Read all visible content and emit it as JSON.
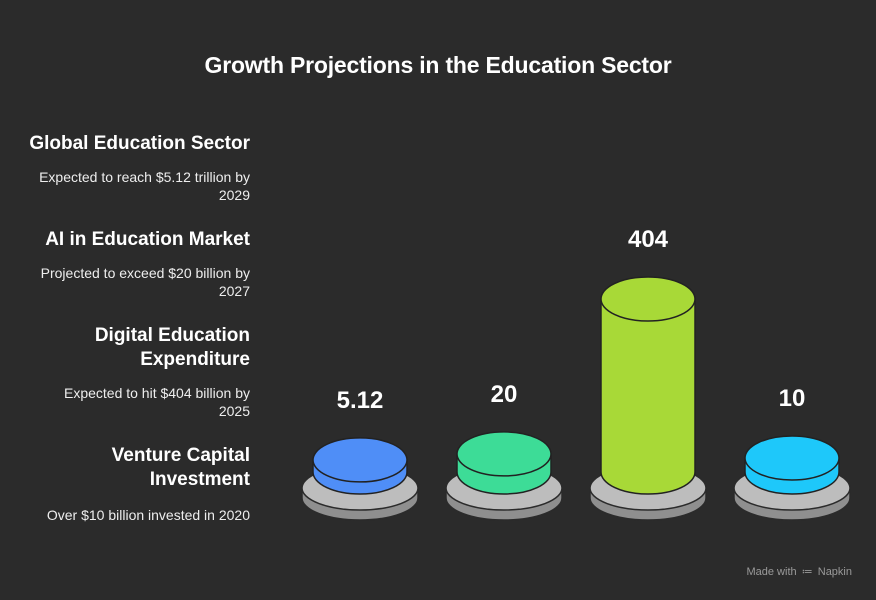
{
  "title": "Growth Projections in the Education Sector",
  "items": [
    {
      "heading": "Global Education Sector",
      "description": "Expected to reach $5.12 trillion by 2029"
    },
    {
      "heading": "AI in Education Market",
      "description": "Projected to exceed $20 billion by 2027"
    },
    {
      "heading": "Digital Education Expenditure",
      "description": "Expected to hit $404 billion by 2025"
    },
    {
      "heading": "Venture Capital Investment",
      "description": "Over $10 billion invested in 2020"
    }
  ],
  "chart_data": {
    "type": "bar",
    "categories": [
      "Global Education Sector",
      "AI in Education Market",
      "Digital Education Expenditure",
      "Venture Capital Investment"
    ],
    "values": [
      5.12,
      20,
      404,
      10
    ],
    "value_labels": [
      "5.12",
      "20",
      "404",
      "10"
    ],
    "colors": [
      "#4f8ef7",
      "#3ddc97",
      "#a8d937",
      "#1ec8fa"
    ],
    "base_color": "#bdbdbd"
  },
  "footer": {
    "made_with": "Made with",
    "brand": "Napkin",
    "brand_icon": "napkin-logo-icon"
  }
}
